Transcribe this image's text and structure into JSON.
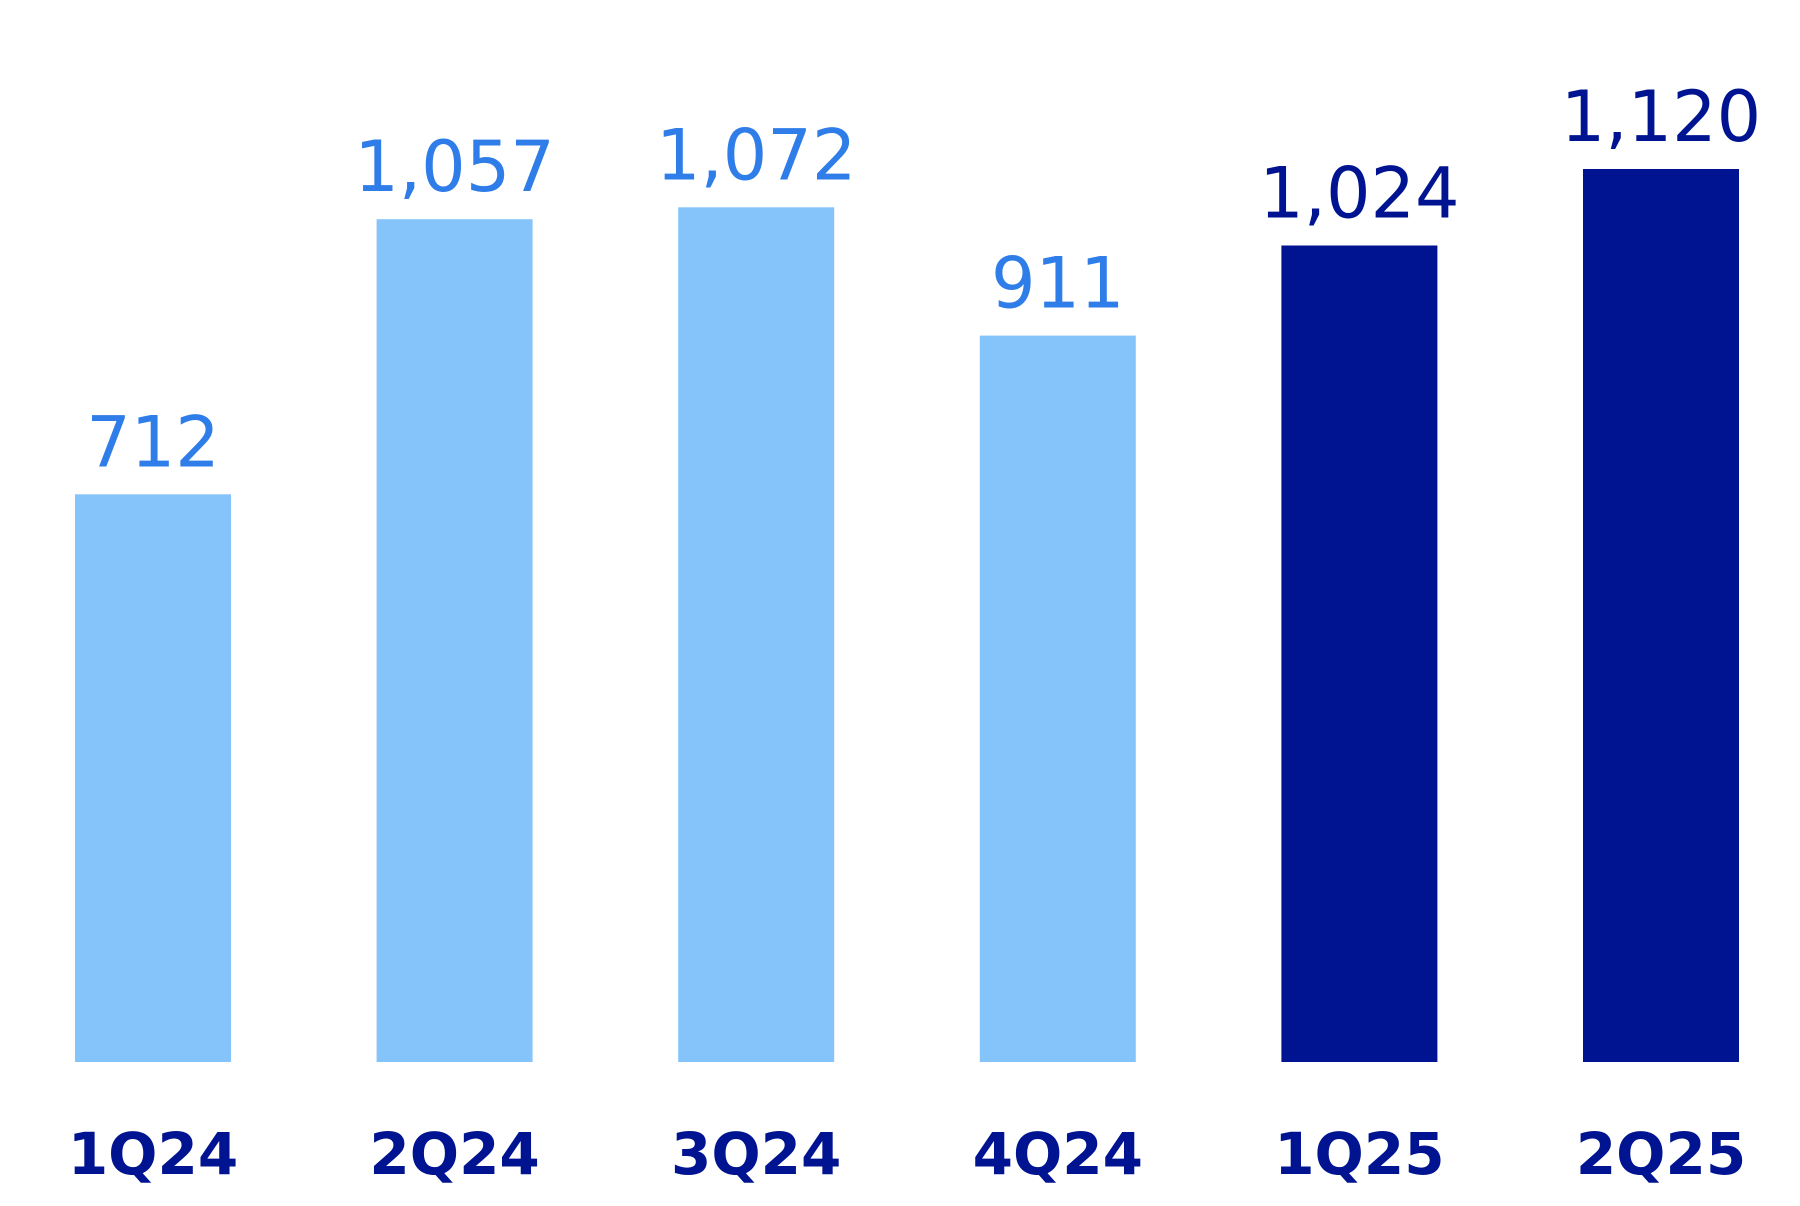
{
  "chart_data": {
    "type": "bar",
    "categories": [
      "1Q24",
      "2Q24",
      "3Q24",
      "4Q24",
      "1Q25",
      "2Q25"
    ],
    "values": [
      712,
      1057,
      1072,
      911,
      1024,
      1120
    ],
    "value_labels": [
      "712",
      "1,057",
      "1,072",
      "911",
      "1,024",
      "1,120"
    ],
    "title": "",
    "xlabel": "",
    "ylabel": "",
    "ylim": [
      0,
      1120
    ],
    "grid": false,
    "colors": {
      "past_bar": "#85c4fb",
      "past_label": "#2f7de8",
      "current_bar": "#001391",
      "current_label": "#001391",
      "tick_label": "#001391"
    },
    "highlight_from_index": 4
  }
}
